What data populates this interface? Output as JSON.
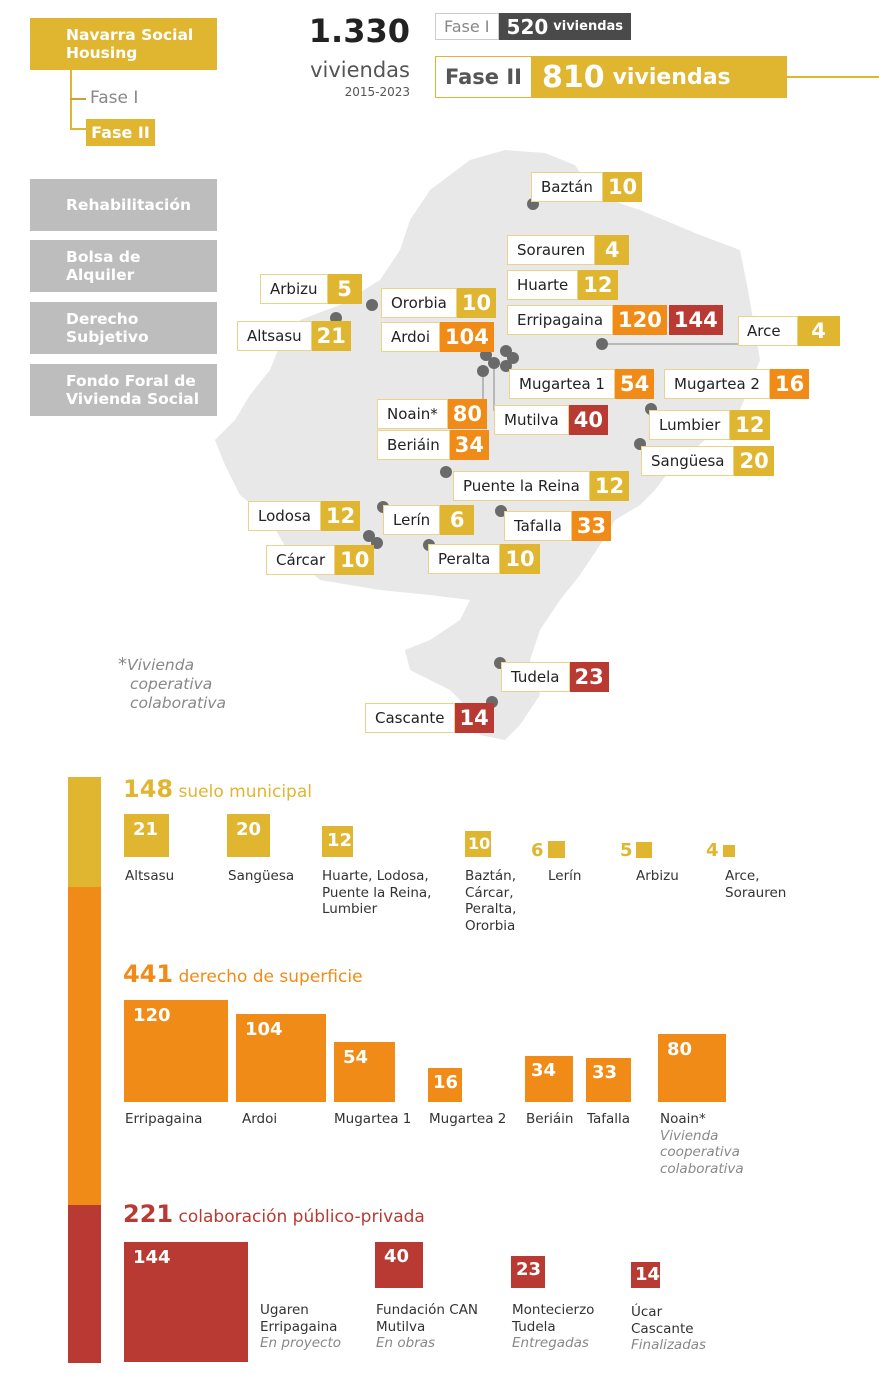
{
  "sidebar": {
    "program": "Navarra Social Housing",
    "phase1": "Fase I",
    "phase2": "Fase II",
    "items": [
      "Rehabilitación",
      "Bolsa de Alquiler",
      "Derecho Subjetivo",
      "Fondo Foral de Vivienda Social"
    ]
  },
  "header": {
    "total": "1.330",
    "total_unit": "viviendas",
    "period": "2015-2023",
    "phase1_label": "Fase I",
    "phase1_value": "520",
    "phase1_unit": "viviendas",
    "phase2_label": "Fase II",
    "phase2_value": "810",
    "phase2_unit": "viviendas"
  },
  "map": {
    "labels": [
      {
        "name": "Baztán",
        "value": "10",
        "color": "#e0b530"
      },
      {
        "name": "Sorauren",
        "value": "4",
        "color": "#e0b530"
      },
      {
        "name": "Huarte",
        "value": "12",
        "color": "#e0b530"
      },
      {
        "name": "Erripagaina",
        "value": "120",
        "value2": "144",
        "color": "#ef8b16",
        "color2": "#b83a32"
      },
      {
        "name": "Arce",
        "value": "4",
        "color": "#e0b530"
      },
      {
        "name": "Arbizu",
        "value": "5",
        "color": "#e0b530"
      },
      {
        "name": "Ororbia",
        "value": "10",
        "color": "#e0b530"
      },
      {
        "name": "Altsasu",
        "value": "21",
        "color": "#e0b530"
      },
      {
        "name": "Ardoi",
        "value": "104",
        "color": "#ef8b16"
      },
      {
        "name": "Mugartea 1",
        "value": "54",
        "color": "#ef8b16"
      },
      {
        "name": "Mugartea 2",
        "value": "16",
        "color": "#ef8b16"
      },
      {
        "name": "Noain*",
        "value": "80",
        "color": "#ef8b16"
      },
      {
        "name": "Mutilva",
        "value": "40",
        "color": "#b83a32"
      },
      {
        "name": "Lumbier",
        "value": "12",
        "color": "#e0b530"
      },
      {
        "name": "Beriáin",
        "value": "34",
        "color": "#ef8b16"
      },
      {
        "name": "Sangüesa",
        "value": "20",
        "color": "#e0b530"
      },
      {
        "name": "Puente la Reina",
        "value": "12",
        "color": "#e0b530"
      },
      {
        "name": "Lodosa",
        "value": "12",
        "color": "#e0b530"
      },
      {
        "name": "Lerín",
        "value": "6",
        "color": "#e0b530"
      },
      {
        "name": "Tafalla",
        "value": "33",
        "color": "#ef8b16"
      },
      {
        "name": "Cárcar",
        "value": "10",
        "color": "#e0b530"
      },
      {
        "name": "Peralta",
        "value": "10",
        "color": "#e0b530"
      },
      {
        "name": "Tudela",
        "value": "23",
        "color": "#b83a32"
      },
      {
        "name": "Cascante",
        "value": "14",
        "color": "#b83a32"
      }
    ],
    "note_star": "*",
    "note": [
      "Vivienda",
      "coperativa",
      "colaborativa"
    ]
  },
  "groups": {
    "municipal": {
      "total": "148",
      "label": "suelo municipal",
      "color": "#e0b530",
      "items": [
        {
          "value": "21",
          "caption": [
            "Altsasu"
          ]
        },
        {
          "value": "20",
          "caption": [
            "Sangüesa"
          ]
        },
        {
          "value": "12",
          "caption": [
            "Huarte, Lodosa,",
            "Puente la Reina,",
            "Lumbier"
          ]
        },
        {
          "value": "10",
          "caption": [
            "Baztán,",
            "Cárcar,",
            "Peralta,",
            "Ororbia"
          ]
        },
        {
          "value": "6",
          "caption": [
            "Lerín"
          ]
        },
        {
          "value": "5",
          "caption": [
            "Arbizu"
          ]
        },
        {
          "value": "4",
          "caption": [
            "Arce,",
            "Sorauren"
          ]
        }
      ]
    },
    "surface": {
      "total": "441",
      "label": "derecho de superficie",
      "color": "#ef8b16",
      "items": [
        {
          "value": "120",
          "caption": [
            "Erripagaina"
          ]
        },
        {
          "value": "104",
          "caption": [
            "Ardoi"
          ]
        },
        {
          "value": "54",
          "caption": [
            "Mugartea 1"
          ]
        },
        {
          "value": "16",
          "caption": [
            "Mugartea 2"
          ]
        },
        {
          "value": "34",
          "caption": [
            "Beriáin"
          ]
        },
        {
          "value": "33",
          "caption": [
            "Tafalla"
          ]
        },
        {
          "value": "80",
          "caption": [
            "Noain*"
          ],
          "note": [
            "Vivienda",
            "cooperativa",
            "colaborativa"
          ]
        }
      ]
    },
    "ppp": {
      "total": "221",
      "label": "colaboración público-privada",
      "color": "#b83a32",
      "items": [
        {
          "value": "144",
          "caption": [
            "Ugaren",
            "Erripagaina"
          ],
          "status": "En proyecto"
        },
        {
          "value": "40",
          "caption": [
            "Fundación CAN",
            "Mutilva"
          ],
          "status": "En obras"
        },
        {
          "value": "23",
          "caption": [
            "Montecierzo",
            "Tudela"
          ],
          "status": "Entregadas"
        },
        {
          "value": "14",
          "caption": [
            "Úcar",
            "Cascante"
          ],
          "status": "Finalizadas"
        }
      ]
    }
  }
}
